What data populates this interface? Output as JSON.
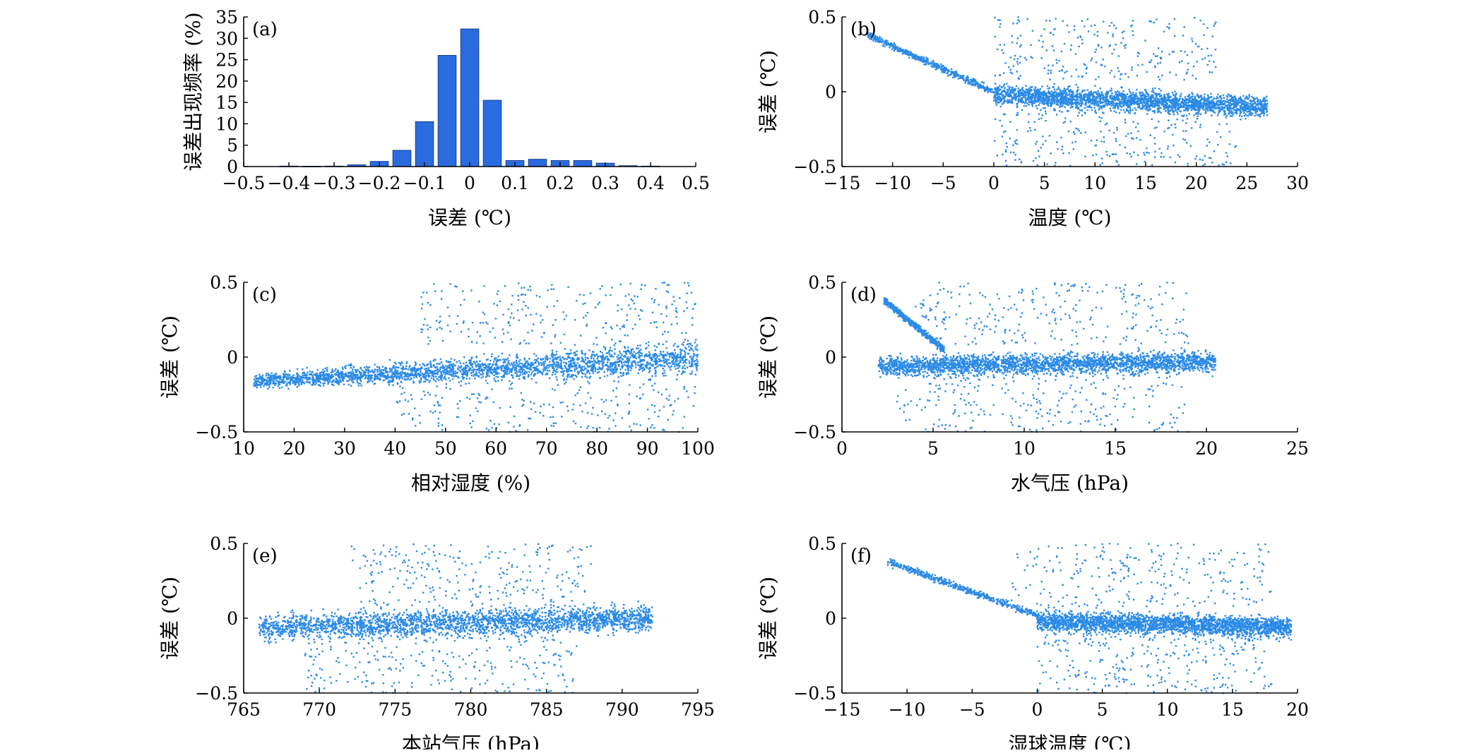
{
  "colors": {
    "bar": "#2a6be0",
    "bar_stroke": "#1a3f8f",
    "point": "#2b8ae6",
    "axis": "#000000"
  },
  "chart_data": [
    {
      "panel_label": "(a)",
      "type": "bar",
      "xlabel": "误差 (℃)",
      "ylabel": "误差出现频率 (%)",
      "xlim": [
        -0.5,
        0.5
      ],
      "ylim": [
        0,
        35
      ],
      "x_tick_values": [
        -0.5,
        -0.4,
        -0.3,
        -0.2,
        -0.1,
        0,
        0.1,
        0.2,
        0.3,
        0.4,
        0.5
      ],
      "x_tick_labels": [
        "−0.5",
        "−0.4",
        "−0.3",
        "−0.2",
        "−0.1",
        "0",
        "0.1",
        "0.2",
        "0.3",
        "0.4",
        "0.5"
      ],
      "y_tick_values": [
        0,
        5,
        10,
        15,
        20,
        25,
        30,
        35
      ],
      "y_tick_labels": [
        "0",
        "5",
        "10",
        "15",
        "20",
        "25",
        "30",
        "35"
      ],
      "bar_width": 0.04,
      "bins": [
        -0.4,
        -0.35,
        -0.3,
        -0.25,
        -0.2,
        -0.15,
        -0.1,
        -0.05,
        0.0,
        0.05,
        0.1,
        0.15,
        0.2,
        0.25,
        0.3,
        0.35,
        0.4
      ],
      "values": [
        0.1,
        0.05,
        0.1,
        0.4,
        1.2,
        3.8,
        10.5,
        26.0,
        32.2,
        15.5,
        1.4,
        1.7,
        1.4,
        1.4,
        0.8,
        0.2,
        0.1
      ]
    },
    {
      "panel_label": "(b)",
      "type": "scatter",
      "xlabel": "温度 (℃)",
      "ylabel": "误差 (℃)",
      "xlim": [
        -15,
        30
      ],
      "ylim": [
        -0.5,
        0.5
      ],
      "x_tick_values": [
        -15,
        -10,
        -5,
        0,
        5,
        10,
        15,
        20,
        25,
        30
      ],
      "x_tick_labels": [
        "−15",
        "−10",
        "−5",
        "0",
        "5",
        "10",
        "15",
        "20",
        "25",
        "30"
      ],
      "y_tick_values": [
        -0.5,
        0,
        0.5
      ],
      "y_tick_labels": [
        "−0.5",
        "0",
        "0.5"
      ],
      "pattern": {
        "descending": [
          [
            -12.5,
            0.38
          ],
          [
            0,
            0.0
          ]
        ],
        "band": {
          "x": [
            0,
            27
          ],
          "y_center": [
            -0.02,
            -0.1
          ],
          "y_spread": 0.07
        },
        "upper_scatter_x": [
          0,
          22
        ],
        "lower_scatter_x": [
          0,
          24
        ]
      }
    },
    {
      "panel_label": "(c)",
      "type": "scatter",
      "xlabel": "相对湿度 (%)",
      "ylabel": "误差 (℃)",
      "xlim": [
        10,
        100
      ],
      "ylim": [
        -0.5,
        0.5
      ],
      "x_tick_values": [
        10,
        20,
        30,
        40,
        50,
        60,
        70,
        80,
        90,
        100
      ],
      "x_tick_labels": [
        "10",
        "20",
        "30",
        "40",
        "50",
        "60",
        "70",
        "80",
        "90",
        "100"
      ],
      "y_tick_values": [
        -0.5,
        0,
        0.5
      ],
      "y_tick_labels": [
        "−0.5",
        "0",
        "0.5"
      ],
      "pattern": {
        "band": {
          "x": [
            12,
            100
          ],
          "y_center": [
            -0.16,
            0.0
          ],
          "y_spread": [
            0.05,
            0.11
          ]
        },
        "upper_scatter_x": [
          45,
          100
        ],
        "lower_scatter_x": [
          40,
          100
        ]
      }
    },
    {
      "panel_label": "(d)",
      "type": "scatter",
      "xlabel": "水气压 (hPa)",
      "ylabel": "误差 (℃)",
      "xlim": [
        0,
        25
      ],
      "ylim": [
        -0.5,
        0.5
      ],
      "x_tick_values": [
        0,
        5,
        10,
        15,
        20,
        25
      ],
      "x_tick_labels": [
        "0",
        "5",
        "10",
        "15",
        "20",
        "25"
      ],
      "y_tick_values": [
        -0.5,
        0,
        0.5
      ],
      "y_tick_labels": [
        "−0.5",
        "0",
        "0.5"
      ],
      "pattern": {
        "descending": [
          [
            2.3,
            0.38
          ],
          [
            5.6,
            0.05
          ]
        ],
        "band": {
          "x": [
            2,
            20.5
          ],
          "y_center": [
            -0.06,
            -0.03
          ],
          "y_spread": 0.07
        },
        "upper_scatter_x": [
          4,
          19
        ],
        "lower_scatter_x": [
          3,
          19
        ]
      }
    },
    {
      "panel_label": "(e)",
      "type": "scatter",
      "xlabel": "本站气压 (hPa)",
      "ylabel": "误差 (℃)",
      "xlim": [
        765,
        795
      ],
      "ylim": [
        -0.5,
        0.5
      ],
      "x_tick_values": [
        765,
        770,
        775,
        780,
        785,
        790,
        795
      ],
      "x_tick_labels": [
        "765",
        "770",
        "775",
        "780",
        "785",
        "790",
        "795"
      ],
      "y_tick_values": [
        -0.5,
        0,
        0.5
      ],
      "y_tick_labels": [
        "−0.5",
        "0",
        "0.5"
      ],
      "pattern": {
        "band": {
          "x": [
            766,
            792
          ],
          "y_center": [
            -0.06,
            0.0
          ],
          "y_spread": 0.09
        },
        "upper_scatter_x": [
          772,
          788
        ],
        "lower_scatter_x": [
          769,
          787
        ]
      }
    },
    {
      "panel_label": "(f)",
      "type": "scatter",
      "xlabel": "湿球温度 (℃)",
      "ylabel": "误差 (℃)",
      "xlim": [
        -15,
        20
      ],
      "ylim": [
        -0.5,
        0.5
      ],
      "x_tick_values": [
        -15,
        -10,
        -5,
        0,
        5,
        10,
        15,
        20
      ],
      "x_tick_labels": [
        "−15",
        "−10",
        "−5",
        "0",
        "5",
        "10",
        "15",
        "20"
      ],
      "y_tick_values": [
        -0.5,
        0,
        0.5
      ],
      "y_tick_labels": [
        "−0.5",
        "0",
        "0.5"
      ],
      "pattern": {
        "descending": [
          [
            -11.5,
            0.38
          ],
          [
            0,
            0.02
          ]
        ],
        "band": {
          "x": [
            0,
            19.5
          ],
          "y_center": [
            -0.02,
            -0.06
          ],
          "y_spread": 0.07
        },
        "upper_scatter_x": [
          -2,
          18
        ],
        "lower_scatter_x": [
          0,
          18
        ]
      }
    }
  ]
}
